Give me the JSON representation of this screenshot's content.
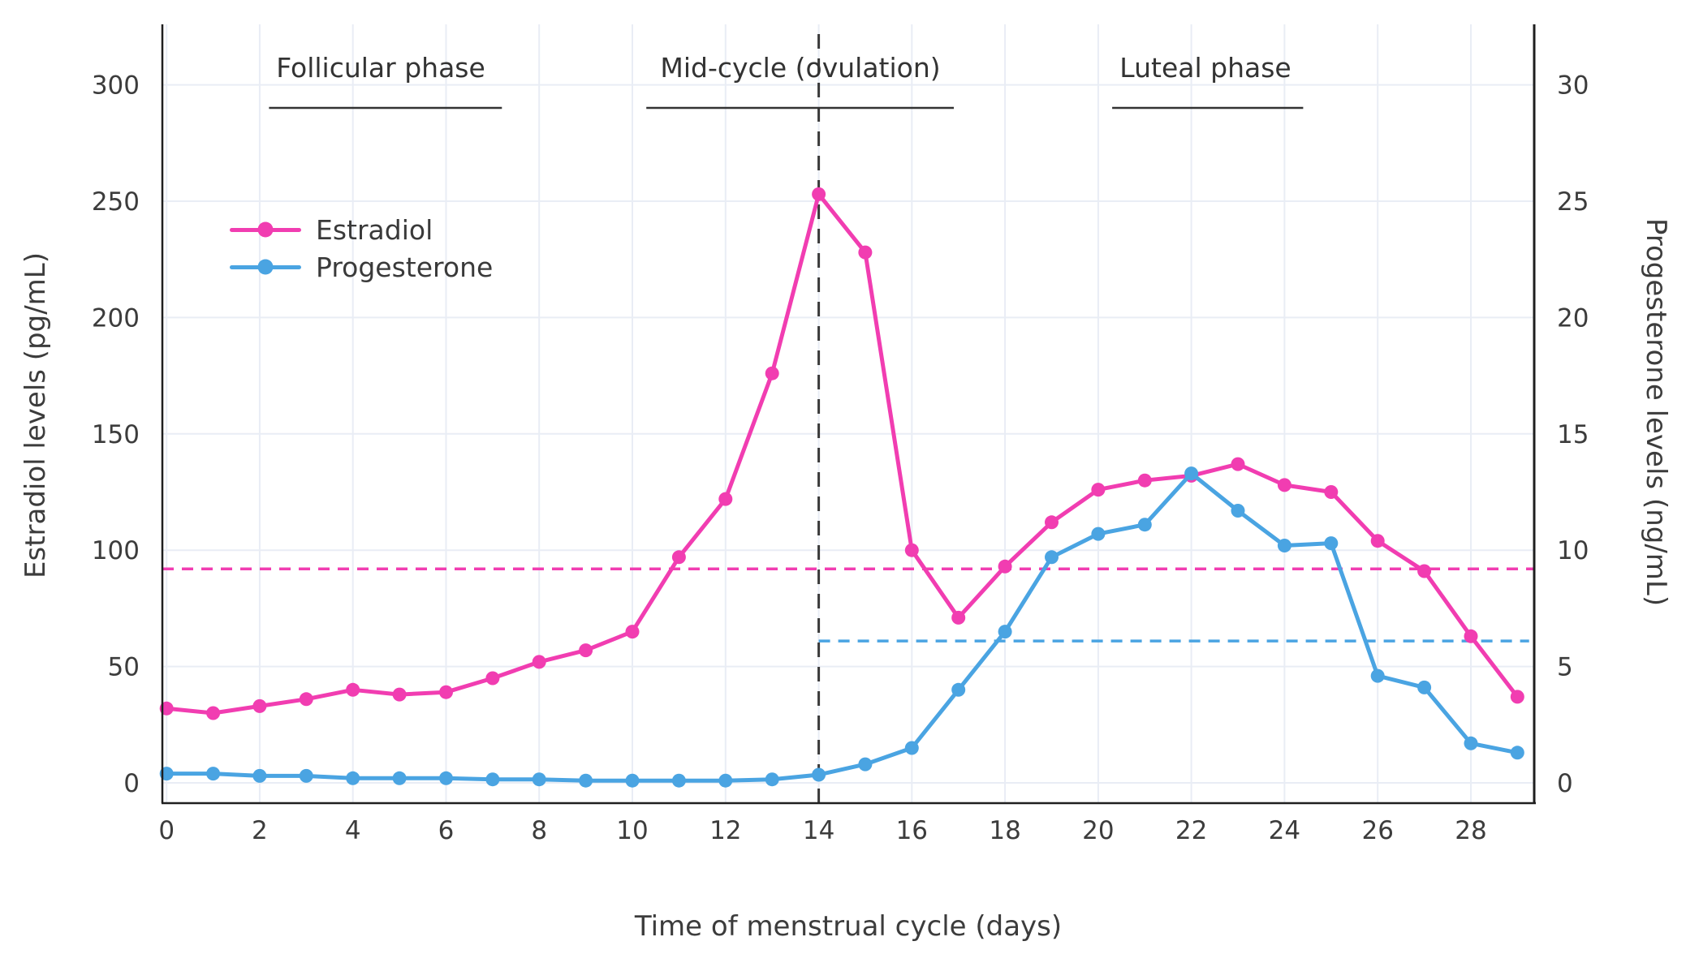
{
  "chart_data": {
    "type": "line",
    "title": "",
    "xlabel": "Time of menstrual cycle (days)",
    "ylabel_left": "Estradiol levels (pg/mL)",
    "ylabel_right": "Progesterone levels (ng/mL)",
    "x": [
      0,
      1,
      2,
      3,
      4,
      5,
      6,
      7,
      8,
      9,
      10,
      11,
      12,
      13,
      14,
      15,
      16,
      17,
      18,
      19,
      20,
      21,
      22,
      23,
      24,
      25,
      26,
      27,
      28,
      29
    ],
    "series": [
      {
        "name": "Estradiol",
        "yaxis": "left",
        "unit": "pg/mL",
        "color": "#f13db1",
        "values": [
          32,
          30,
          33,
          36,
          40,
          38,
          39,
          45,
          52,
          57,
          65,
          97,
          122,
          176,
          253,
          228,
          100,
          71,
          93,
          112,
          126,
          130,
          132,
          137,
          128,
          125,
          104,
          91,
          63,
          37
        ]
      },
      {
        "name": "Progesterone",
        "yaxis": "right",
        "unit": "ng/mL",
        "color": "#4aa4e2",
        "values": [
          0.4,
          0.4,
          0.3,
          0.3,
          0.2,
          0.2,
          0.2,
          0.15,
          0.15,
          0.1,
          0.1,
          0.1,
          0.1,
          0.15,
          0.35,
          0.8,
          1.5,
          4.0,
          6.5,
          9.7,
          10.7,
          11.1,
          13.3,
          11.7,
          10.2,
          10.3,
          4.6,
          4.1,
          1.7,
          1.3
        ]
      }
    ],
    "x_ticks": [
      0,
      2,
      4,
      6,
      8,
      10,
      12,
      14,
      16,
      18,
      20,
      22,
      24,
      26,
      28
    ],
    "y_left_ticks": [
      0,
      50,
      100,
      150,
      200,
      250,
      300
    ],
    "y_right_ticks": [
      0,
      5,
      10,
      15,
      20,
      25,
      30
    ],
    "x_range": [
      -0.09,
      29.36
    ],
    "y_left_range": [
      -8.7,
      326
    ],
    "y_right_range": [
      -0.87,
      32.6
    ],
    "grid": true,
    "legend_position": "inside-top-left",
    "annotations": {
      "phases": [
        {
          "label": "Follicular phase",
          "center_day": 4.6,
          "underline_span": [
            2.2,
            7.2
          ]
        },
        {
          "label": "Mid-cycle (ovulation)",
          "center_day": 13.6,
          "underline_span": [
            10.3,
            16.9
          ]
        },
        {
          "label": "Luteal phase",
          "center_day": 22.3,
          "underline_span": [
            20.3,
            24.4
          ]
        }
      ],
      "reference_lines": [
        {
          "orientation": "horizontal",
          "axis": "left",
          "value": 92,
          "span_days": [
            -0.09,
            29.36
          ],
          "color": "#f13db1",
          "style": "dashed"
        },
        {
          "orientation": "horizontal",
          "axis": "right",
          "value": 6.1,
          "span_days": [
            14,
            29.25
          ],
          "color": "#4aa4e2",
          "style": "dashed"
        },
        {
          "orientation": "vertical",
          "day": 14,
          "color": "#3a3a3a",
          "style": "dashed"
        }
      ]
    },
    "colors": {
      "grid": "#e9edf5",
      "spine": "#1f1f1f",
      "tick_text": "#3c3c3c",
      "phase_underline": "#333333"
    }
  }
}
